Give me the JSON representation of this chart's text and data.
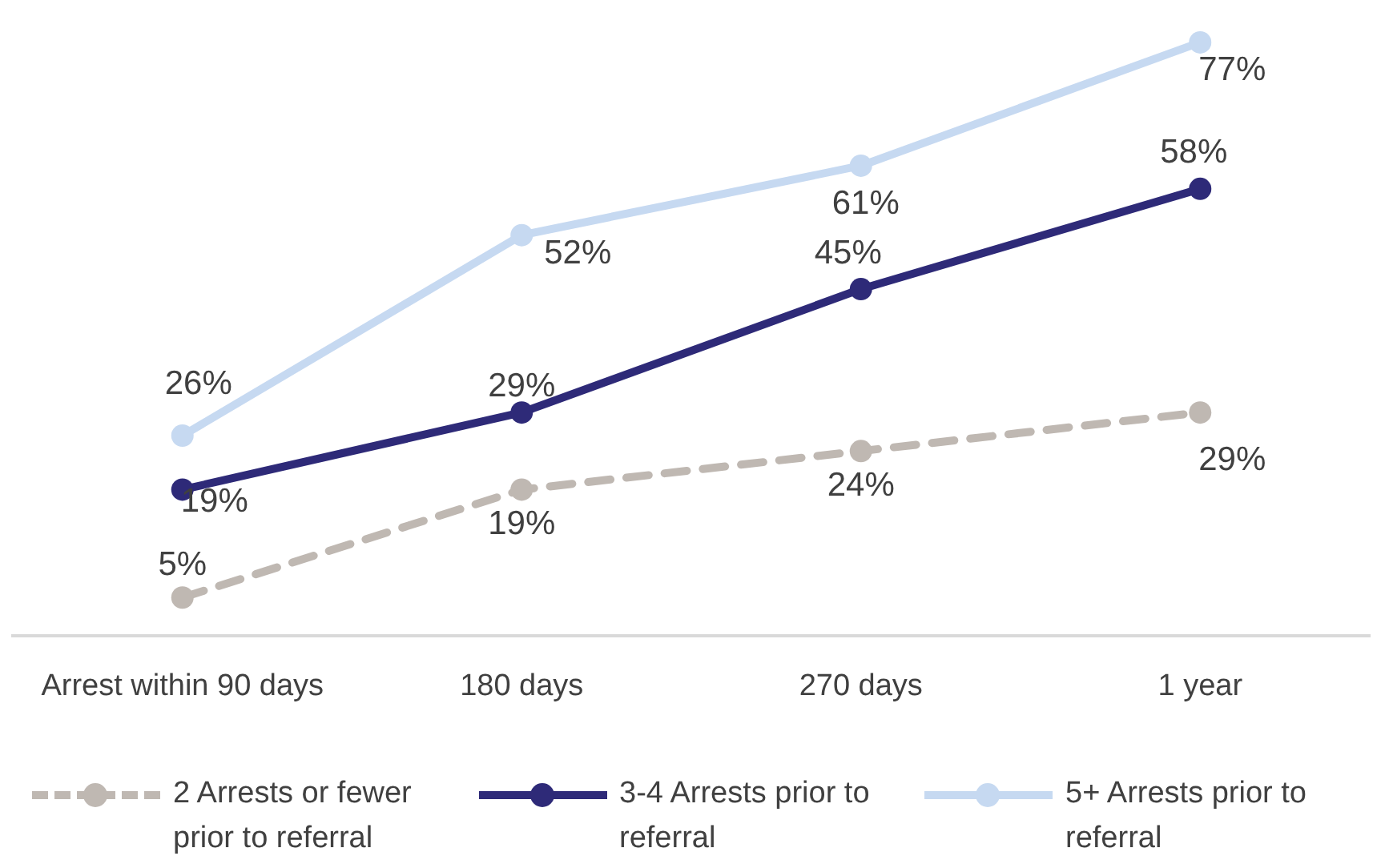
{
  "chart_data": {
    "type": "line",
    "categories": [
      "Arrest within 90 days",
      "180 days",
      "270 days",
      "1 year"
    ],
    "series": [
      {
        "name": "2 Arrests or fewer prior to referral",
        "color": "#bfb8b2",
        "line_style": "dashed",
        "values": [
          5,
          19,
          24,
          29
        ],
        "value_labels": [
          "5%",
          "19%",
          "24%",
          "29%"
        ]
      },
      {
        "name": "3-4 Arrests prior to referral",
        "color": "#2e2a78",
        "line_style": "solid",
        "values": [
          19,
          29,
          45,
          58
        ],
        "value_labels": [
          "19%",
          "29%",
          "45%",
          "58%"
        ]
      },
      {
        "name": "5+ Arrests prior to referral",
        "color": "#c6d9f1",
        "line_style": "solid",
        "values": [
          26,
          52,
          61,
          77
        ],
        "value_labels": [
          "26%",
          "52%",
          "61%",
          "77%"
        ]
      }
    ],
    "marker": "circle",
    "grid": false,
    "legend": "bottom"
  }
}
